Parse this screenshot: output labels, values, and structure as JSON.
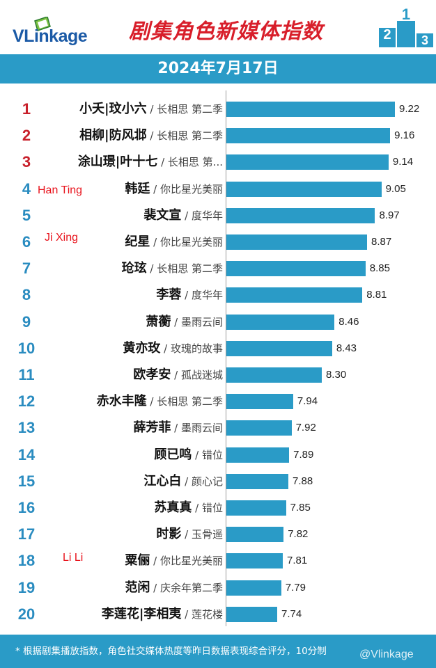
{
  "brand": {
    "logo_text": "VLinkage",
    "watermark": "@Vlinkage"
  },
  "header": {
    "title": "剧集角色新媒体指数",
    "podium_digits": [
      "2",
      "1",
      "3"
    ]
  },
  "date": "2024年7月17日",
  "footer": {
    "note": "* 根据剧集播放指数，角色社交媒体热度等昨日数据表现综合评分，10分制"
  },
  "colors": {
    "bar": "#2a9bc7",
    "header_bar": "#2a9bc7",
    "title": "#d81e2a",
    "top_rank": "#c8202b",
    "rank": "#2a8cc0",
    "annotation": "#e8131c"
  },
  "chart_data": {
    "type": "bar",
    "orientation": "horizontal",
    "xlim": [
      0,
      9.22
    ],
    "grid": false,
    "items": [
      {
        "rank": "1",
        "name": "小夭|玟小六",
        "drama": " / 长相思 第二季",
        "value": 9.22,
        "value_label": "9.22"
      },
      {
        "rank": "2",
        "name": "相柳|防风邶",
        "drama": " / 长相思 第二季",
        "value": 9.16,
        "value_label": "9.16"
      },
      {
        "rank": "3",
        "name": "涂山璟|叶十七",
        "drama": " / 长相思 第...",
        "value": 9.14,
        "value_label": "9.14"
      },
      {
        "rank": "4",
        "name": "韩廷",
        "drama": " / 你比星光美丽",
        "value": 9.05,
        "value_label": "9.05",
        "annotation": "Han Ting"
      },
      {
        "rank": "5",
        "name": "裴文宣",
        "drama": " / 度华年",
        "value": 8.97,
        "value_label": "8.97"
      },
      {
        "rank": "6",
        "name": "纪星",
        "drama": " / 你比星光美丽",
        "value": 8.87,
        "value_label": "8.87",
        "annotation": "Ji Xing"
      },
      {
        "rank": "7",
        "name": "玱玹",
        "drama": " / 长相思 第二季",
        "value": 8.85,
        "value_label": "8.85"
      },
      {
        "rank": "8",
        "name": "李蓉",
        "drama": " / 度华年",
        "value": 8.81,
        "value_label": "8.81"
      },
      {
        "rank": "9",
        "name": "萧蘅",
        "drama": " / 墨雨云间",
        "value": 8.46,
        "value_label": "8.46"
      },
      {
        "rank": "10",
        "name": "黄亦玫",
        "drama": " / 玫瑰的故事",
        "value": 8.43,
        "value_label": "8.43"
      },
      {
        "rank": "11",
        "name": "欧孝安",
        "drama": " / 孤战迷城",
        "value": 8.3,
        "value_label": "8.30"
      },
      {
        "rank": "12",
        "name": "赤水丰隆",
        "drama": " / 长相思 第二季",
        "value": 7.94,
        "value_label": "7.94"
      },
      {
        "rank": "13",
        "name": "薛芳菲",
        "drama": " / 墨雨云间",
        "value": 7.92,
        "value_label": "7.92"
      },
      {
        "rank": "14",
        "name": "顾已鸣",
        "drama": " / 错位",
        "value": 7.89,
        "value_label": "7.89"
      },
      {
        "rank": "15",
        "name": "江心白",
        "drama": " / 颜心记",
        "value": 7.88,
        "value_label": "7.88"
      },
      {
        "rank": "16",
        "name": "苏真真",
        "drama": " / 错位",
        "value": 7.85,
        "value_label": "7.85"
      },
      {
        "rank": "17",
        "name": "时影",
        "drama": " / 玉骨遥",
        "value": 7.82,
        "value_label": "7.82"
      },
      {
        "rank": "18",
        "name": "粟俪",
        "drama": " / 你比星光美丽",
        "value": 7.81,
        "value_label": "7.81",
        "annotation": "Li Li"
      },
      {
        "rank": "19",
        "name": "范闲",
        "drama": " / 庆余年第二季",
        "value": 7.79,
        "value_label": "7.79"
      },
      {
        "rank": "20",
        "name": "李莲花|李相夷",
        "drama": " / 莲花楼",
        "value": 7.74,
        "value_label": "7.74"
      }
    ]
  }
}
